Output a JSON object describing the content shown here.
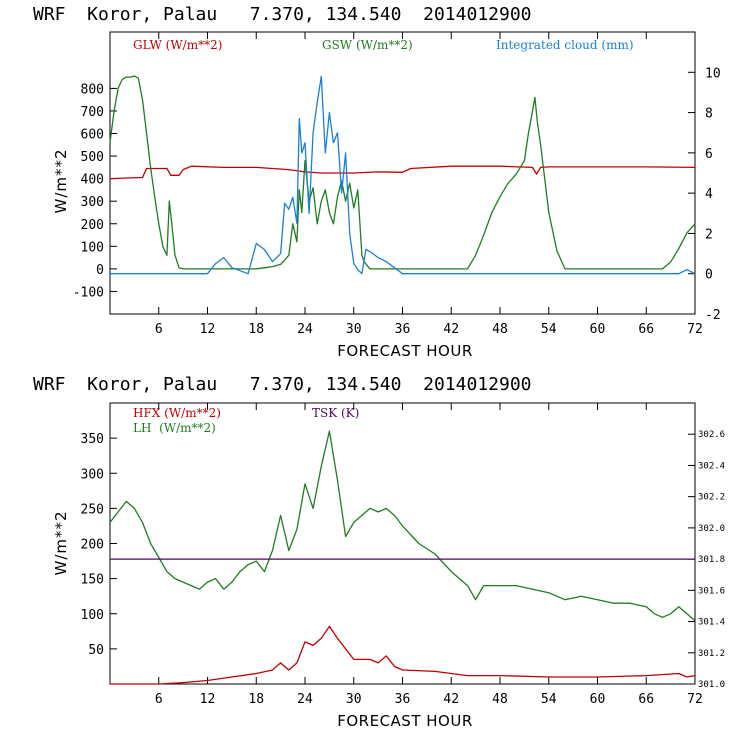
{
  "colors": {
    "red": "#c00000",
    "green": "#1e7d1e",
    "blue": "#1a7fd6",
    "purple": "#4b0a5a",
    "axis": "#000000"
  },
  "chart_data": [
    {
      "type": "line",
      "title": "WRF  Koror, Palau   7.370, 134.540  2014012900",
      "xlabel": "FORECAST HOUR",
      "ylabel": "W/m**2",
      "xlim": [
        0,
        72
      ],
      "ylim": [
        -200,
        1050
      ],
      "y2lim": [
        -2,
        12
      ],
      "xticks": [
        6,
        12,
        18,
        24,
        30,
        36,
        42,
        48,
        54,
        60,
        66,
        72
      ],
      "yticks": [
        -100,
        0,
        100,
        200,
        300,
        400,
        500,
        600,
        700,
        800
      ],
      "y2ticks": [
        -2,
        0,
        2,
        4,
        6,
        8,
        10
      ],
      "legend": [
        "GLW (W/m**2)",
        "GSW (W/m**2)",
        "Integrated cloud (mm)"
      ],
      "series": [
        {
          "name": "GLW (W/m**2)",
          "axis": "left",
          "color": "red",
          "x": [
            0,
            4,
            4.5,
            7,
            7.5,
            8.5,
            9,
            10,
            14,
            18,
            22,
            24,
            26,
            30,
            33,
            36,
            37,
            42,
            48,
            52,
            52.5,
            53,
            54,
            56,
            60,
            66,
            72
          ],
          "y": [
            400,
            405,
            445,
            445,
            415,
            415,
            440,
            455,
            450,
            450,
            440,
            430,
            425,
            425,
            430,
            428,
            445,
            455,
            455,
            450,
            420,
            450,
            452,
            452,
            452,
            452,
            450
          ]
        },
        {
          "name": "GSW (W/m**2)",
          "axis": "left",
          "color": "green",
          "x": [
            0,
            0.5,
            1,
            1.5,
            2,
            2.5,
            3,
            3.5,
            4,
            4.5,
            5,
            5.5,
            6,
            6.5,
            7,
            7.3,
            7.6,
            8,
            8.5,
            9,
            10,
            12,
            18,
            19,
            20,
            21,
            22,
            22.5,
            23,
            23.3,
            23.6,
            24,
            24.5,
            25,
            25.5,
            26,
            26.5,
            27,
            27.5,
            28,
            28.5,
            29,
            29.5,
            30,
            30.5,
            31,
            31.3,
            32,
            36,
            44,
            45,
            46,
            47,
            48,
            49,
            50,
            51,
            51.5,
            52,
            52.3,
            52.6,
            53,
            53.5,
            54,
            55,
            56,
            60,
            66,
            68,
            69,
            70,
            71,
            72
          ],
          "y": [
            560,
            700,
            800,
            840,
            850,
            850,
            855,
            845,
            750,
            600,
            450,
            320,
            200,
            100,
            60,
            300,
            200,
            60,
            5,
            0,
            0,
            0,
            0,
            5,
            10,
            20,
            60,
            200,
            120,
            350,
            250,
            480,
            300,
            360,
            200,
            300,
            350,
            250,
            200,
            320,
            390,
            300,
            380,
            270,
            350,
            60,
            30,
            0,
            0,
            0,
            60,
            150,
            250,
            320,
            380,
            420,
            480,
            600,
            700,
            760,
            650,
            550,
            400,
            250,
            80,
            0,
            0,
            0,
            0,
            30,
            90,
            160,
            200
          ]
        },
        {
          "name": "Integrated cloud (mm)",
          "axis": "right",
          "color": "blue",
          "x": [
            0,
            6,
            12,
            13,
            14,
            15,
            17,
            18,
            19,
            20,
            21,
            21.5,
            22,
            22.5,
            23,
            23.3,
            23.6,
            24,
            24.5,
            25,
            25.5,
            26,
            26.5,
            27,
            27.5,
            28,
            28.5,
            29,
            29.5,
            30,
            30.5,
            31,
            31.5,
            32,
            33,
            34,
            35,
            36,
            40,
            48,
            56,
            64,
            70,
            71,
            72
          ],
          "y": [
            0,
            0,
            0,
            0.5,
            0.8,
            0.3,
            0,
            1.5,
            1.2,
            0.6,
            1,
            3.5,
            3.2,
            3.8,
            2.5,
            7.7,
            6,
            6.5,
            3,
            7,
            8.5,
            9.8,
            6,
            8,
            6.5,
            7,
            4,
            6,
            2,
            0.5,
            0.2,
            0,
            1.2,
            1.1,
            0.8,
            0.6,
            0.3,
            0,
            0,
            0,
            0,
            0,
            0,
            0.2,
            0
          ]
        }
      ]
    },
    {
      "type": "line",
      "title": "WRF  Koror, Palau   7.370, 134.540  2014012900",
      "xlabel": "FORECAST HOUR",
      "ylabel": "W/m**2",
      "xlim": [
        0,
        72
      ],
      "ylim": [
        0,
        400
      ],
      "y2lim": [
        301.0,
        302.8
      ],
      "xticks": [
        6,
        12,
        18,
        24,
        30,
        36,
        42,
        48,
        54,
        60,
        66,
        72
      ],
      "yticks": [
        50,
        100,
        150,
        200,
        250,
        300,
        350
      ],
      "y2ticks": [
        301.0,
        301.2,
        301.4,
        301.6,
        301.8,
        302.0,
        302.2,
        302.4,
        302.6
      ],
      "y2ticklabels": [
        "301.0",
        "301.2",
        "301.4",
        "301.6",
        "301.8",
        "302.0",
        "302.2",
        "302.4",
        "302.6"
      ],
      "legend": [
        "HFX (W/m**2)",
        "LH  (W/m**2)",
        "TSK (K)"
      ],
      "series": [
        {
          "name": "HFX (W/m**2)",
          "axis": "left",
          "color": "red",
          "x": [
            0,
            6,
            9,
            12,
            15,
            18,
            20,
            21,
            22,
            23,
            24,
            25,
            26,
            27,
            28,
            29,
            30,
            32,
            33,
            34,
            35,
            36,
            40,
            44,
            48,
            54,
            60,
            66,
            70,
            71,
            72
          ],
          "y": [
            0,
            0,
            2,
            5,
            10,
            15,
            20,
            30,
            20,
            30,
            60,
            55,
            65,
            82,
            65,
            50,
            35,
            35,
            30,
            40,
            25,
            20,
            18,
            12,
            12,
            10,
            10,
            12,
            15,
            10,
            12
          ]
        },
        {
          "name": "LH  (W/m**2)",
          "axis": "left",
          "color": "green",
          "x": [
            0,
            1,
            2,
            3,
            4,
            5,
            6,
            7,
            8,
            9,
            10,
            11,
            12,
            13,
            14,
            15,
            16,
            17,
            18,
            19,
            20,
            21,
            22,
            23,
            24,
            25,
            26,
            27,
            28,
            29,
            30,
            31,
            32,
            33,
            34,
            35,
            36,
            38,
            40,
            42,
            44,
            45,
            46,
            48,
            50,
            52,
            54,
            56,
            58,
            60,
            62,
            64,
            66,
            67,
            68,
            69,
            70,
            71,
            72
          ],
          "y": [
            230,
            245,
            260,
            250,
            230,
            200,
            180,
            160,
            150,
            145,
            140,
            135,
            145,
            150,
            135,
            145,
            160,
            170,
            175,
            160,
            190,
            240,
            190,
            220,
            285,
            250,
            310,
            360,
            290,
            210,
            230,
            240,
            250,
            245,
            250,
            240,
            225,
            200,
            185,
            160,
            140,
            120,
            140,
            140,
            140,
            135,
            130,
            120,
            125,
            120,
            115,
            115,
            110,
            100,
            95,
            100,
            110,
            100,
            90
          ]
        },
        {
          "name": "TSK (K)",
          "axis": "right",
          "color": "purple",
          "x": [
            0,
            72
          ],
          "y": [
            301.8,
            301.8
          ]
        }
      ]
    }
  ]
}
